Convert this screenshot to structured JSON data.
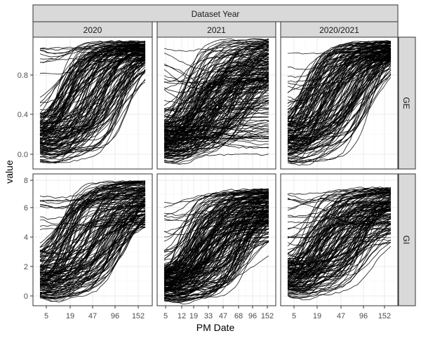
{
  "chart_data": {
    "type": "line",
    "title": "",
    "xlabel": "PM Date",
    "ylabel": "value",
    "facet_title": "Dataset Year",
    "columns": [
      "2020",
      "2021",
      "2020/2021"
    ],
    "rows": [
      "GE",
      "GI"
    ],
    "x_ticks": [
      [
        "5",
        "19",
        "47",
        "96",
        "152"
      ],
      [
        "5",
        "12",
        "19",
        "33",
        "47",
        "68",
        "96",
        "152"
      ],
      [
        "5",
        "19",
        "47",
        "96",
        "152"
      ]
    ],
    "y_ticks": [
      [
        "0.0",
        "0.4",
        "0.8"
      ],
      [
        "0",
        "2",
        "4",
        "6",
        "8"
      ]
    ],
    "y_ranges": [
      [
        -0.09,
        1.07
      ],
      [
        -0.5,
        8.2
      ]
    ],
    "series_summary": [
      {
        "column": "2020",
        "row": "GE",
        "start_min": -0.05,
        "start_max": 1.0,
        "end_min": 0.85,
        "end_max": 1.05
      },
      {
        "column": "2021",
        "row": "GE",
        "start_min": -0.05,
        "start_max": 1.0,
        "end_min": 0.0,
        "end_max": 1.07
      },
      {
        "column": "2020/2021",
        "row": "GE",
        "start_min": -0.05,
        "start_max": 1.0,
        "end_min": 0.85,
        "end_max": 1.05
      },
      {
        "column": "2020",
        "row": "GI",
        "start_min": -0.1,
        "start_max": 7.1,
        "end_min": 4.3,
        "end_max": 7.9
      },
      {
        "column": "2021",
        "row": "GI",
        "start_min": -0.3,
        "start_max": 6.5,
        "end_min": 3.5,
        "end_max": 7.3
      },
      {
        "column": "2020/2021",
        "row": "GI",
        "start_min": -0.1,
        "start_max": 7.1,
        "end_min": 3.5,
        "end_max": 7.4
      }
    ],
    "grid": true,
    "colors": {
      "line": "#000000",
      "strip": "#d9d9d9",
      "panel_border": "#333333",
      "grid": "#ebebeb"
    }
  }
}
